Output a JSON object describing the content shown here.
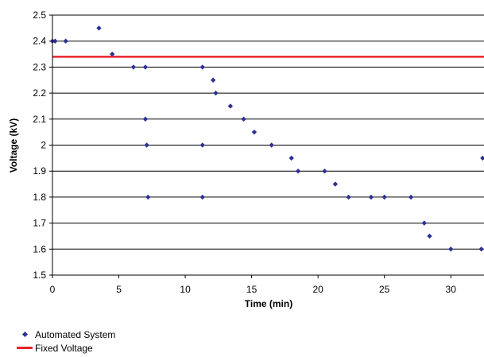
{
  "chart_data": {
    "type": "scatter",
    "xlabel": "Time (min)",
    "ylabel": "Voltage (kV)",
    "xlim": [
      0,
      32.5
    ],
    "ylim": [
      1.5,
      2.5
    ],
    "x_ticks": [
      0,
      5,
      10,
      15,
      20,
      25,
      30
    ],
    "y_ticks": [
      1.5,
      1.6,
      1.7,
      1.8,
      1.9,
      2,
      2.1,
      2.2,
      2.3,
      2.4,
      2.5
    ],
    "grid": "horizontal",
    "legend_position": "bottom-left",
    "series": [
      {
        "name": "Automated System",
        "kind": "scatter",
        "color": "#2e3192",
        "points": [
          [
            0,
            2.4
          ],
          [
            0.2,
            2.4
          ],
          [
            1,
            2.4
          ],
          [
            3.5,
            2.45
          ],
          [
            4.5,
            2.35
          ],
          [
            6.1,
            2.3
          ],
          [
            7,
            2.3
          ],
          [
            7,
            2.1
          ],
          [
            7.1,
            2.0
          ],
          [
            7.2,
            1.8
          ],
          [
            11.3,
            2.3
          ],
          [
            11.3,
            2.0
          ],
          [
            11.3,
            1.8
          ],
          [
            12.1,
            2.25
          ],
          [
            12.3,
            2.2
          ],
          [
            13.4,
            2.15
          ],
          [
            14.4,
            2.1
          ],
          [
            15.2,
            2.05
          ],
          [
            16.5,
            2.0
          ],
          [
            18,
            1.95
          ],
          [
            18.5,
            1.9
          ],
          [
            20.5,
            1.9
          ],
          [
            21.3,
            1.85
          ],
          [
            22.3,
            1.8
          ],
          [
            24,
            1.8
          ],
          [
            25,
            1.8
          ],
          [
            27,
            1.8
          ],
          [
            28,
            1.7
          ],
          [
            28.4,
            1.65
          ],
          [
            30,
            1.6
          ],
          [
            32.3,
            1.6
          ],
          [
            32.4,
            1.95
          ]
        ]
      },
      {
        "name": "Fixed Voltage",
        "kind": "line",
        "color": "#e8232a",
        "y": 2.34
      }
    ]
  }
}
